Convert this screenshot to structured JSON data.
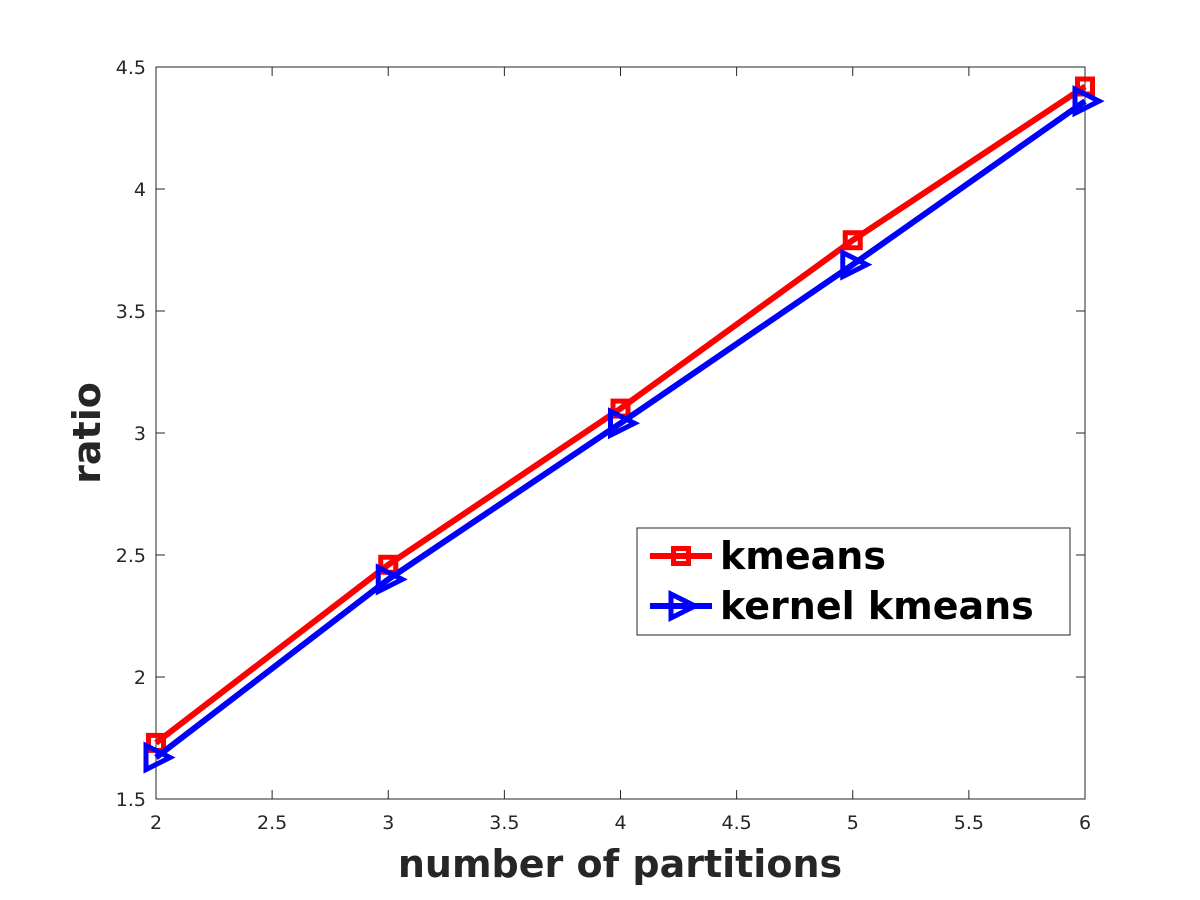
{
  "chart_data": {
    "type": "line",
    "title": "",
    "xlabel": "number of partitions",
    "ylabel": "ratio",
    "xlim": [
      2,
      6
    ],
    "ylim": [
      1.5,
      4.5
    ],
    "x_ticks": [
      "2",
      "2.5",
      "3",
      "3.5",
      "4",
      "4.5",
      "5",
      "5.5",
      "6"
    ],
    "y_ticks": [
      "1.5",
      "2",
      "2.5",
      "3",
      "3.5",
      "4",
      "4.5"
    ],
    "x": [
      2,
      3,
      4,
      5,
      6
    ],
    "series": [
      {
        "name": "kmeans",
        "values": [
          1.73,
          2.46,
          3.1,
          3.79,
          4.42
        ],
        "color": "#ff0000",
        "marker": "square"
      },
      {
        "name": "kernel kmeans",
        "values": [
          1.67,
          2.4,
          3.04,
          3.69,
          4.36
        ],
        "color": "#0000ff",
        "marker": "triangle-right"
      }
    ],
    "grid": false,
    "legend": "center-right"
  }
}
